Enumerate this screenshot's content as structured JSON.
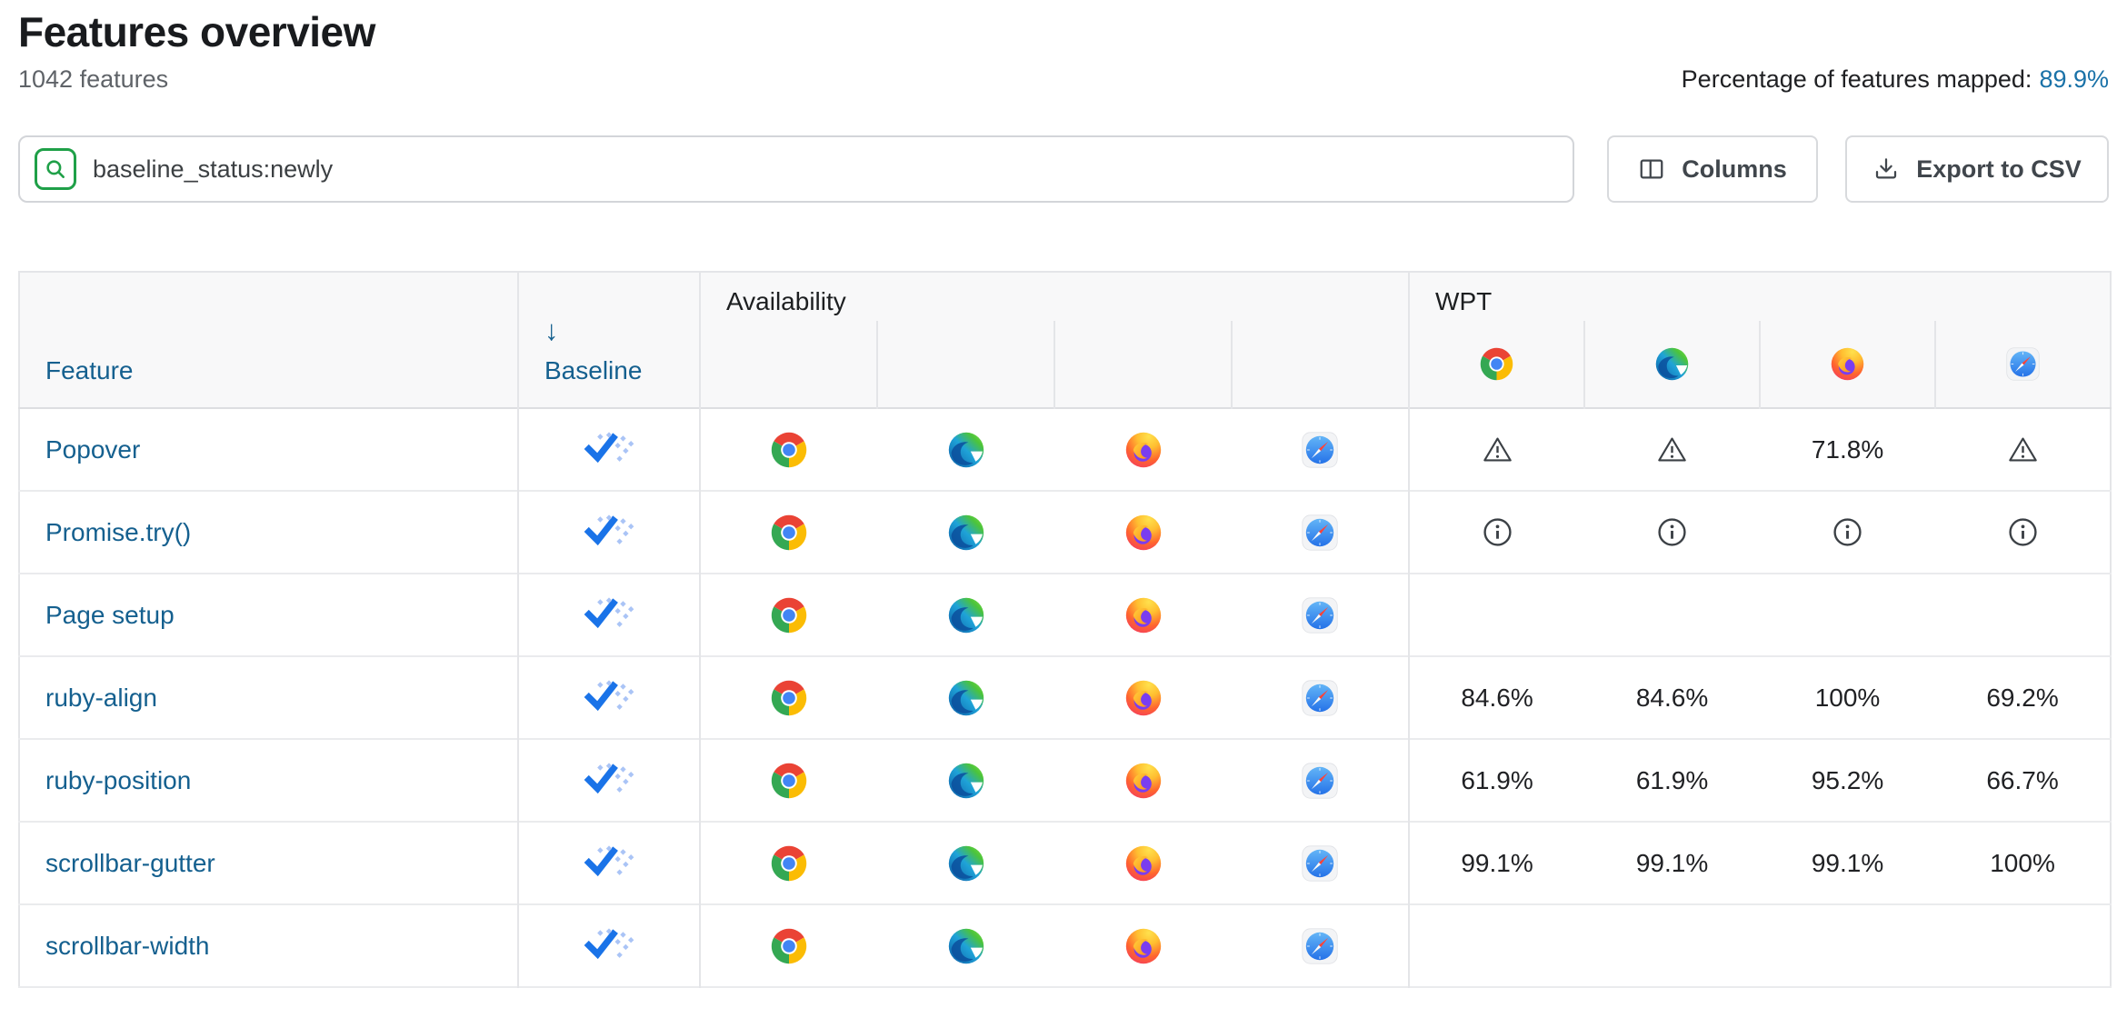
{
  "page": {
    "title": "Features overview",
    "subtitle": "1042 features",
    "mapped_label": "Percentage of features mapped:",
    "mapped_value": "89.9%"
  },
  "toolbar": {
    "search_value": "baseline_status:newly",
    "columns_label": "Columns",
    "export_label": "Export to CSV"
  },
  "table": {
    "headers": {
      "feature": "Feature",
      "baseline": "Baseline",
      "sort_indicator": "↓",
      "availability": "Availability",
      "wpt": "WPT",
      "browsers": [
        "chrome",
        "edge",
        "firefox",
        "safari"
      ]
    },
    "rows": [
      {
        "feature": "Popover",
        "baseline": "newly",
        "availability": [
          "chrome",
          "edge",
          "firefox",
          "safari"
        ],
        "wpt": [
          "warning",
          "warning",
          "71.8%",
          "warning"
        ]
      },
      {
        "feature": "Promise.try()",
        "baseline": "newly",
        "availability": [
          "chrome",
          "edge",
          "firefox",
          "safari"
        ],
        "wpt": [
          "info",
          "info",
          "info",
          "info"
        ]
      },
      {
        "feature": "Page setup",
        "baseline": "newly",
        "availability": [
          "chrome",
          "edge",
          "firefox",
          "safari"
        ],
        "wpt": [
          "",
          "",
          "",
          ""
        ]
      },
      {
        "feature": "ruby-align",
        "baseline": "newly",
        "availability": [
          "chrome",
          "edge",
          "firefox",
          "safari"
        ],
        "wpt": [
          "84.6%",
          "84.6%",
          "100%",
          "69.2%"
        ]
      },
      {
        "feature": "ruby-position",
        "baseline": "newly",
        "availability": [
          "chrome",
          "edge",
          "firefox",
          "safari"
        ],
        "wpt": [
          "61.9%",
          "61.9%",
          "95.2%",
          "66.7%"
        ]
      },
      {
        "feature": "scrollbar-gutter",
        "baseline": "newly",
        "availability": [
          "chrome",
          "edge",
          "firefox",
          "safari"
        ],
        "wpt": [
          "99.1%",
          "99.1%",
          "99.1%",
          "100%"
        ]
      },
      {
        "feature": "scrollbar-width",
        "baseline": "newly",
        "availability": [
          "chrome",
          "edge",
          "firefox",
          "safari"
        ],
        "wpt": [
          "",
          "",
          "",
          ""
        ]
      }
    ]
  },
  "colors": {
    "link": "#15608f",
    "mapped_link": "#1a72a8",
    "search_accent_green": "#1fa048",
    "baseline_check_blue": "#1a73e8",
    "baseline_dots_blue": "#aac4f6",
    "header_bg": "#f8f8f9",
    "border": "#e4e5e8"
  }
}
